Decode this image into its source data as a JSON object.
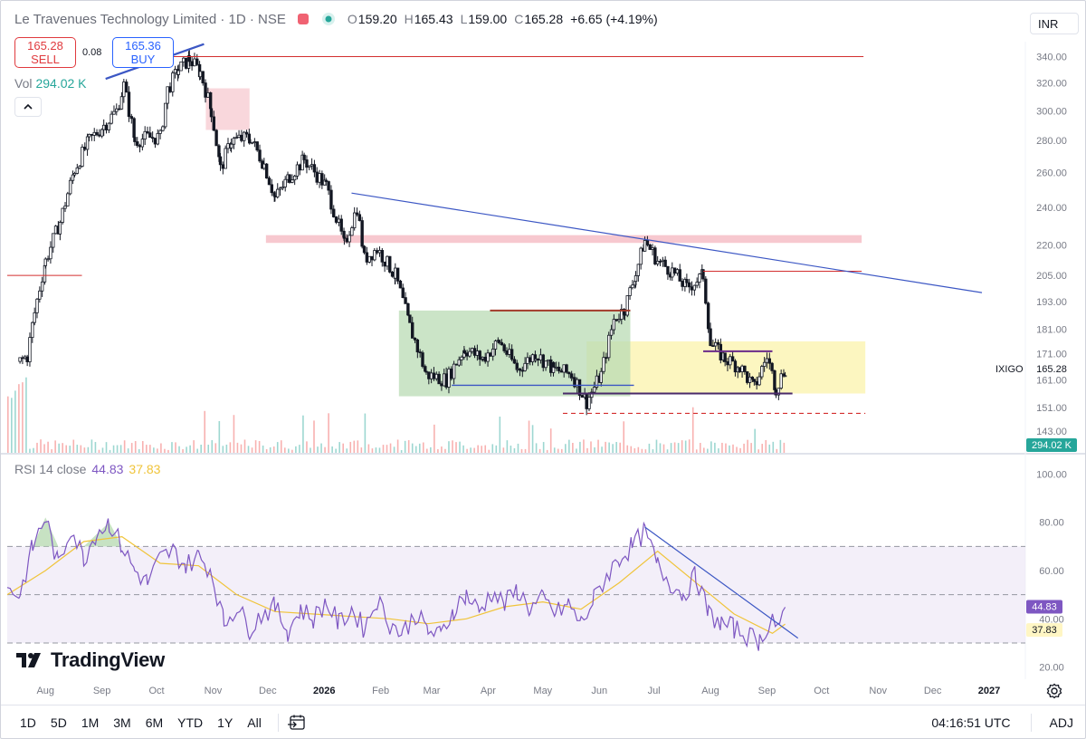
{
  "header": {
    "title": "Le Travenues Technology Limited · 1D · NSE",
    "open_label": "O",
    "open": "159.20",
    "high_label": "H",
    "high": "165.43",
    "low_label": "L",
    "low": "159.00",
    "close_label": "C",
    "close": "165.28",
    "change": "+6.65 (+4.19%)",
    "currency": "INR"
  },
  "trade": {
    "sell_price": "165.28",
    "sell_label": "SELL",
    "buy_price": "165.36",
    "buy_label": "BUY",
    "spread": "0.08"
  },
  "volume": {
    "label": "Vol",
    "value": "294.02 K"
  },
  "rsi": {
    "label": "RSI 14 close",
    "value": "44.83",
    "ma_value": "37.83"
  },
  "logo": "TradingView",
  "bottom_bar": {
    "ranges": [
      "1D",
      "5D",
      "1M",
      "3M",
      "6M",
      "YTD",
      "1Y",
      "All"
    ],
    "clock": "04:16:51 UTC",
    "adj": "ADJ"
  },
  "colors": {
    "up": "#26a69a",
    "down": "#ef5350",
    "candle": "#131722",
    "rsi": "#7e57c2",
    "rsi_ma": "#f0c43a",
    "trend_blue": "#3c57c4",
    "resistance_red": "#d32f2f",
    "zone_pink": "#f4b6bf",
    "zone_green": "#b9dbb4",
    "zone_yellow": "#fbf5b5"
  },
  "chart_data": [
    {
      "type": "candlestick",
      "title": "Le Travenues Technology Limited · 1D · NSE",
      "y_scale": "log",
      "ylim": [
        136,
        352
      ],
      "y_ticks": [
        340.0,
        320.0,
        300.0,
        280.0,
        260.0,
        240.0,
        220.0,
        205.0,
        193.0,
        181.0,
        171.0,
        161.0,
        151.0,
        143.0
      ],
      "x_ticks": [
        "Aug",
        "Sep",
        "Oct",
        "Nov",
        "Dec",
        "2026",
        "Feb",
        "Mar",
        "Apr",
        "May",
        "Jun",
        "Jul",
        "Aug",
        "Sep",
        "Oct",
        "Nov",
        "Dec",
        "2027"
      ],
      "last_price": {
        "label": "IXIGO",
        "value": "165.28"
      },
      "volume_badge": "294.02 K",
      "price_path": [
        [
          "2025-07-21",
          168
        ],
        [
          "2025-07-25",
          170
        ],
        [
          "2025-07-29",
          188
        ],
        [
          "2025-08-04",
          212
        ],
        [
          "2025-08-12",
          232
        ],
        [
          "2025-08-20",
          262
        ],
        [
          "2025-08-28",
          280
        ],
        [
          "2025-09-05",
          290
        ],
        [
          "2025-09-12",
          300
        ],
        [
          "2025-09-16",
          318
        ],
        [
          "2025-09-22",
          280
        ],
        [
          "2025-09-29",
          282
        ],
        [
          "2025-10-06",
          282
        ],
        [
          "2025-10-10",
          315
        ],
        [
          "2025-10-16",
          330
        ],
        [
          "2025-10-22",
          338
        ],
        [
          "2025-10-28",
          328
        ],
        [
          "2025-11-03",
          300
        ],
        [
          "2025-11-08",
          262
        ],
        [
          "2025-11-14",
          280
        ],
        [
          "2025-11-24",
          282
        ],
        [
          "2025-12-02",
          265
        ],
        [
          "2025-12-08",
          245
        ],
        [
          "2025-12-16",
          258
        ],
        [
          "2025-12-24",
          268
        ],
        [
          "2026-01-05",
          252
        ],
        [
          "2026-01-15",
          220
        ],
        [
          "2026-01-22",
          240
        ],
        [
          "2026-01-26",
          213
        ],
        [
          "2026-02-02",
          218
        ],
        [
          "2026-02-12",
          205
        ],
        [
          "2026-02-20",
          182
        ],
        [
          "2026-03-01",
          163
        ],
        [
          "2026-03-12",
          161
        ],
        [
          "2026-03-22",
          173
        ],
        [
          "2026-04-01",
          169
        ],
        [
          "2026-04-10",
          176
        ],
        [
          "2026-04-20",
          165
        ],
        [
          "2026-04-30",
          171
        ],
        [
          "2026-05-10",
          165
        ],
        [
          "2026-05-20",
          163
        ],
        [
          "2026-05-28",
          153
        ],
        [
          "2026-06-05",
          163
        ],
        [
          "2026-06-12",
          185
        ],
        [
          "2026-06-18",
          190
        ],
        [
          "2026-06-24",
          206
        ],
        [
          "2026-06-29",
          222
        ],
        [
          "2026-07-06",
          212
        ],
        [
          "2026-07-14",
          207
        ],
        [
          "2026-07-22",
          199
        ],
        [
          "2026-07-31",
          205
        ],
        [
          "2026-08-04",
          175
        ],
        [
          "2026-08-12",
          169
        ],
        [
          "2026-08-20",
          166
        ],
        [
          "2026-08-28",
          158
        ],
        [
          "2026-09-04",
          170
        ],
        [
          "2026-09-09",
          158
        ],
        [
          "2026-09-14",
          165.28
        ]
      ],
      "annotations": {
        "horizontal_resistance": {
          "price": 340,
          "from": "2025-10-01",
          "to": "2026-10-27"
        },
        "early_red_line": {
          "price": 205,
          "from": "2025-07-14",
          "to": "2025-08-24"
        },
        "top_trendline": {
          "from": [
            "2025-09-06",
            323
          ],
          "to": [
            "2025-10-30",
            350
          ]
        },
        "descending_trendline": {
          "from": [
            "2026-01-19",
            248
          ],
          "to": [
            "2026-12-31",
            197
          ]
        },
        "supply_zone_pink_small": {
          "from": "2025-10-31",
          "to": "2025-11-24",
          "price_range": [
            287,
            316
          ]
        },
        "supply_zone_pink": {
          "from": "2025-12-03",
          "to": "2026-10-26",
          "price_range": [
            221,
            225
          ]
        },
        "accumulation_zone_green": {
          "from": "2026-02-14",
          "to": "2026-06-21",
          "price_range": [
            155,
            189
          ]
        },
        "demand_zone_yellow": {
          "from": "2026-05-28",
          "to": "2026-10-28",
          "price_range": [
            156,
            176
          ]
        },
        "resistance_red_mid": {
          "price": 189,
          "from": "2026-04-05",
          "to": "2026-06-21"
        },
        "resistance_red_right": {
          "price": 207,
          "from": "2026-07-31",
          "to": "2026-10-26"
        },
        "support_blue": {
          "price": 159,
          "from": "2026-03-15",
          "to": "2026-06-23"
        },
        "support_purple": {
          "price": 156,
          "from": "2026-05-15",
          "to": "2026-09-18"
        },
        "purple_box_top": {
          "price": 172,
          "from": "2026-07-31",
          "to": "2026-09-07"
        },
        "dashed_red_support": {
          "price": 149,
          "from": "2026-05-15",
          "to": "2026-10-28"
        }
      }
    },
    {
      "type": "line",
      "title": "RSI 14 close",
      "ylim": [
        15,
        108
      ],
      "y_ticks": [
        100.0,
        80.0,
        60.0,
        40.0,
        20.0
      ],
      "bands": {
        "upper": 70,
        "middle": 50,
        "lower": 30
      },
      "series": [
        {
          "name": "RSI",
          "values": [
            [
              "2025-07-14",
              52
            ],
            [
              "2025-07-21",
              50
            ],
            [
              "2025-07-28",
              70
            ],
            [
              "2025-08-04",
              82
            ],
            [
              "2025-08-11",
              62
            ],
            [
              "2025-08-18",
              78
            ],
            [
              "2025-08-25",
              65
            ],
            [
              "2025-09-01",
              76
            ],
            [
              "2025-09-08",
              80
            ],
            [
              "2025-09-15",
              70
            ],
            [
              "2025-09-22",
              60
            ],
            [
              "2025-09-29",
              55
            ],
            [
              "2025-10-06",
              65
            ],
            [
              "2025-10-13",
              68
            ],
            [
              "2025-10-20",
              62
            ],
            [
              "2025-10-27",
              66
            ],
            [
              "2025-11-03",
              60
            ],
            [
              "2025-11-10",
              38
            ],
            [
              "2025-11-17",
              45
            ],
            [
              "2025-11-24",
              36
            ],
            [
              "2025-12-01",
              42
            ],
            [
              "2025-12-08",
              45
            ],
            [
              "2025-12-15",
              35
            ],
            [
              "2025-12-22",
              44
            ],
            [
              "2025-12-29",
              40
            ],
            [
              "2026-01-05",
              47
            ],
            [
              "2026-01-12",
              38
            ],
            [
              "2026-01-19",
              44
            ],
            [
              "2026-01-26",
              36
            ],
            [
              "2026-02-02",
              48
            ],
            [
              "2026-02-09",
              38
            ],
            [
              "2026-02-16",
              34
            ],
            [
              "2026-02-23",
              42
            ],
            [
              "2026-03-02",
              35
            ],
            [
              "2026-03-09",
              33
            ],
            [
              "2026-03-16",
              44
            ],
            [
              "2026-03-23",
              50
            ],
            [
              "2026-03-30",
              43
            ],
            [
              "2026-04-06",
              51
            ],
            [
              "2026-04-13",
              46
            ],
            [
              "2026-04-20",
              52
            ],
            [
              "2026-04-27",
              44
            ],
            [
              "2026-05-04",
              48
            ],
            [
              "2026-05-11",
              42
            ],
            [
              "2026-05-18",
              46
            ],
            [
              "2026-05-25",
              38
            ],
            [
              "2026-06-01",
              48
            ],
            [
              "2026-06-08",
              58
            ],
            [
              "2026-06-15",
              65
            ],
            [
              "2026-06-22",
              70
            ],
            [
              "2026-06-29",
              76
            ],
            [
              "2026-07-06",
              62
            ],
            [
              "2026-07-13",
              55
            ],
            [
              "2026-07-20",
              50
            ],
            [
              "2026-07-27",
              58
            ],
            [
              "2026-08-03",
              42
            ],
            [
              "2026-08-10",
              38
            ],
            [
              "2026-08-17",
              36
            ],
            [
              "2026-08-24",
              33
            ],
            [
              "2026-08-31",
              31
            ],
            [
              "2026-09-07",
              41
            ],
            [
              "2026-09-11",
              34
            ],
            [
              "2026-09-14",
              44.83
            ]
          ]
        },
        {
          "name": "RSI-based MA",
          "values": [
            [
              "2025-07-14",
              50
            ],
            [
              "2025-08-04",
              60
            ],
            [
              "2025-08-25",
              72
            ],
            [
              "2025-09-15",
              74
            ],
            [
              "2025-10-06",
              63
            ],
            [
              "2025-10-27",
              62
            ],
            [
              "2025-11-17",
              50
            ],
            [
              "2025-12-08",
              43
            ],
            [
              "2025-12-29",
              42
            ],
            [
              "2026-01-19",
              41
            ],
            [
              "2026-02-09",
              40
            ],
            [
              "2026-03-02",
              38
            ],
            [
              "2026-03-23",
              40
            ],
            [
              "2026-04-13",
              45
            ],
            [
              "2026-05-04",
              47
            ],
            [
              "2026-05-25",
              44
            ],
            [
              "2026-06-15",
              55
            ],
            [
              "2026-07-06",
              68
            ],
            [
              "2026-07-27",
              55
            ],
            [
              "2026-08-17",
              42
            ],
            [
              "2026-09-07",
              34
            ],
            [
              "2026-09-14",
              37.83
            ]
          ]
        }
      ],
      "annotations": {
        "descending_trendline": {
          "from": [
            "2026-06-29",
            78
          ],
          "to": [
            "2026-09-21",
            32
          ]
        }
      }
    }
  ]
}
